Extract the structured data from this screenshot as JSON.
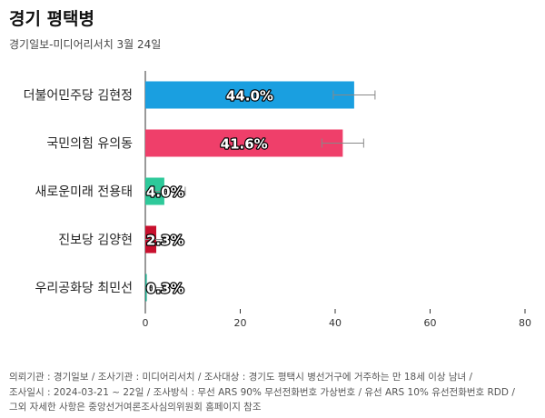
{
  "header": {
    "title": "경기 평택병",
    "subtitle": "경기일보-미디어리서치 3월 24일"
  },
  "colors": {
    "axis": "#333333",
    "tick": "#333333",
    "errorbar": "#888888",
    "label_fill": "#ffffff",
    "label_stroke": "#000000"
  },
  "chart_data": {
    "type": "bar",
    "orientation": "horizontal",
    "categories": [
      "더불어민주당 김현정",
      "국민의힘 유의동",
      "새로운미래 전용태",
      "진보당 김양현",
      "우리공화당 최민선"
    ],
    "values": [
      44.0,
      41.6,
      4.0,
      2.3,
      0.3
    ],
    "value_labels": [
      "44.0%",
      "41.6%",
      "4.0%",
      "2.3%",
      "0.3%"
    ],
    "error_bars": [
      [
        39.6,
        48.4
      ],
      [
        37.2,
        46.0
      ],
      [
        0.0,
        8.4
      ],
      [
        0.0,
        6.7
      ],
      [
        0.0,
        4.7
      ]
    ],
    "bar_colors": [
      "#1a9fe0",
      "#ef3f6a",
      "#2ec99a",
      "#c8102e",
      "#1aa88a"
    ],
    "xlim": [
      0,
      80
    ],
    "xticks": [
      0,
      20,
      40,
      60,
      80
    ],
    "grid": false,
    "legend": "none"
  },
  "footer": {
    "lines": [
      "의뢰기관 : 경기일보 / 조사기관 : 미디어리서치 / 조사대상 : 경기도 평택시 병선거구에 거주하는 만 18세 이상 남녀 /",
      "조사일시 : 2024-03-21 ~ 22일 / 조사방식 : 무선 ARS 90% 무선전화번호 가상번호 / 유선 ARS 10% 유선전화번호 RDD /",
      "그외 자세한 사항은 중앙선거여론조사심의위원회 홈페이지 참조"
    ]
  }
}
